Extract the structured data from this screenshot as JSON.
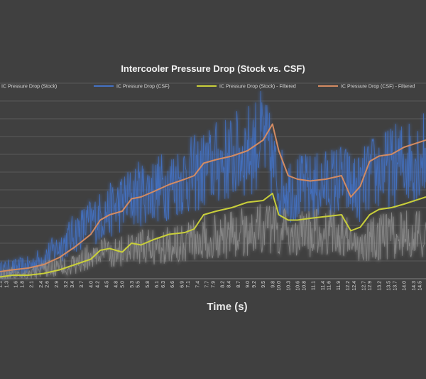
{
  "chart_data": {
    "type": "line",
    "title": "Intercooler Pressure Drop (Stock vs. CSF)",
    "xlabel": "Time (s)",
    "ylabel": "",
    "legend_position": "top",
    "grid": true,
    "x_ticks": [
      "1.1",
      "1.3",
      "1.6",
      "1.8",
      "2.1",
      "2.4",
      "2.6",
      "2.9",
      "3.2",
      "3.4",
      "3.7",
      "4.0",
      "4.2",
      "4.5",
      "4.8",
      "5.0",
      "5.3",
      "5.5",
      "5.8",
      "6.1",
      "6.3",
      "6.6",
      "6.9",
      "7.1",
      "7.4",
      "7.7",
      "7.9",
      "8.2",
      "8.4",
      "8.7",
      "9.0",
      "9.2",
      "9.5",
      "9.8",
      "10.0",
      "10.3",
      "10.6",
      "10.8",
      "11.1",
      "11.4",
      "11.6",
      "11.9",
      "12.2",
      "12.4",
      "12.7",
      "12.9",
      "13.2",
      "13.5",
      "13.7",
      "14.0",
      "14.3",
      "14.5"
    ],
    "xlim": [
      1.1,
      14.7
    ],
    "ylim": [
      0,
      16
    ],
    "y_gridlines": [
      1,
      2,
      3,
      4,
      5,
      6,
      7,
      8,
      9,
      10,
      11,
      12,
      13,
      14,
      15,
      16
    ],
    "series": [
      {
        "name": "IC Pressure Drop (Stock)",
        "color": "#8c8c8c",
        "style": "noisy",
        "x": [
          1.1,
          1.5,
          2.0,
          2.5,
          3.0,
          3.5,
          4.0,
          4.5,
          5.0,
          5.5,
          6.0,
          6.5,
          7.0,
          7.5,
          8.0,
          8.5,
          9.0,
          9.5,
          10.0,
          10.5,
          11.0,
          11.5,
          12.0,
          12.5,
          13.0,
          13.5,
          14.0,
          14.7
        ],
        "y": [
          0.2,
          0.3,
          0.3,
          0.5,
          0.7,
          0.8,
          1.3,
          1.5,
          1.5,
          1.7,
          1.8,
          2.0,
          2.2,
          2.3,
          2.4,
          2.5,
          2.7,
          2.9,
          2.6,
          2.5,
          2.5,
          2.6,
          2.6,
          1.7,
          2.3,
          2.4,
          2.5,
          2.5
        ]
      },
      {
        "name": "IC Pressure Drop (CSF)",
        "color": "#4472c4",
        "style": "noisy",
        "x": [
          1.1,
          1.5,
          2.0,
          2.5,
          3.0,
          3.5,
          4.0,
          4.5,
          5.0,
          5.5,
          6.0,
          6.5,
          7.0,
          7.5,
          8.0,
          8.5,
          9.0,
          9.5,
          10.0,
          10.5,
          11.0,
          11.5,
          12.0,
          12.5,
          13.0,
          13.5,
          14.0,
          14.7
        ],
        "y": [
          0.5,
          0.6,
          0.7,
          1.2,
          1.8,
          2.6,
          3.2,
          3.7,
          4.3,
          4.8,
          5.0,
          5.3,
          5.7,
          6.0,
          6.5,
          6.8,
          7.2,
          7.9,
          5.4,
          5.1,
          5.1,
          5.3,
          5.6,
          5.0,
          5.9,
          6.2,
          6.6,
          7.0
        ]
      },
      {
        "name": "IC Pressure Drop (Stock) - Filtered",
        "color": "#c9cf3a",
        "style": "smooth",
        "x": [
          1.1,
          1.5,
          2.0,
          2.5,
          3.0,
          3.5,
          4.0,
          4.3,
          4.6,
          5.0,
          5.3,
          5.6,
          6.0,
          6.5,
          7.0,
          7.3,
          7.6,
          8.0,
          8.5,
          9.0,
          9.5,
          9.8,
          10.0,
          10.3,
          10.6,
          11.0,
          11.5,
          12.0,
          12.3,
          12.6,
          12.9,
          13.2,
          13.6,
          14.0,
          14.7
        ],
        "y": [
          0.1,
          0.2,
          0.2,
          0.3,
          0.5,
          0.8,
          1.1,
          1.6,
          1.7,
          1.5,
          2.0,
          1.9,
          2.2,
          2.5,
          2.6,
          2.8,
          3.6,
          3.8,
          4.0,
          4.3,
          4.4,
          4.8,
          3.6,
          3.3,
          3.3,
          3.4,
          3.5,
          3.6,
          2.7,
          2.9,
          3.6,
          3.9,
          4.0,
          4.2,
          4.6
        ]
      },
      {
        "name": "IC Pressure Drop (CSF) - Filtered",
        "color": "#d38b62",
        "style": "smooth",
        "x": [
          1.1,
          1.5,
          2.0,
          2.5,
          3.0,
          3.5,
          4.0,
          4.3,
          4.6,
          5.0,
          5.3,
          5.6,
          6.0,
          6.5,
          7.0,
          7.3,
          7.6,
          8.0,
          8.5,
          9.0,
          9.5,
          9.8,
          10.0,
          10.3,
          10.6,
          11.0,
          11.5,
          12.0,
          12.3,
          12.6,
          12.9,
          13.2,
          13.6,
          14.0,
          14.7
        ],
        "y": [
          0.4,
          0.5,
          0.6,
          0.8,
          1.2,
          1.8,
          2.5,
          3.3,
          3.6,
          3.8,
          4.5,
          4.6,
          4.9,
          5.3,
          5.6,
          5.8,
          6.5,
          6.7,
          6.9,
          7.2,
          7.8,
          8.7,
          7.2,
          5.8,
          5.6,
          5.5,
          5.6,
          5.8,
          4.6,
          5.2,
          6.6,
          6.9,
          7.0,
          7.4,
          7.8
        ]
      }
    ]
  }
}
